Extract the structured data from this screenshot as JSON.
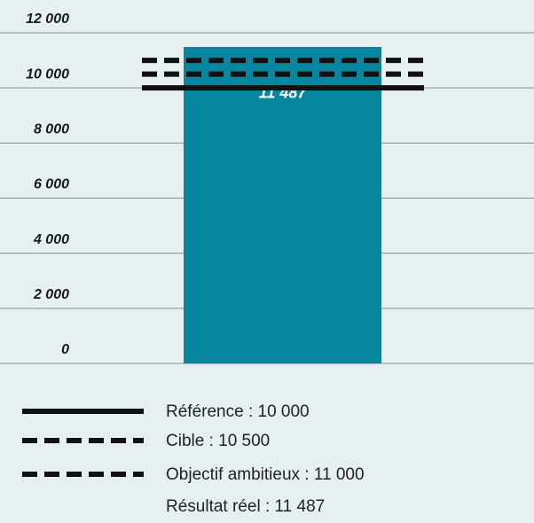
{
  "chart_data": {
    "type": "bar",
    "categories": [
      null
    ],
    "series": [
      {
        "name": "Résultat réel : 11 487",
        "color": "#06869f",
        "values": [
          11487
        ],
        "value_labels": [
          "11 487"
        ]
      }
    ],
    "reference_lines": [
      {
        "name": "Référence : 10 000",
        "value": 10000,
        "style": "solid",
        "color": "#111111"
      },
      {
        "name": "Cible : 10 500",
        "value": 10500,
        "style": "dashed",
        "color": "#111111"
      },
      {
        "name": "Objectif ambitieux : 11 000",
        "value": 11000,
        "style": "dashed",
        "color": "#111111"
      }
    ],
    "ylim": [
      0,
      12000
    ],
    "yticks": [
      {
        "value": 0,
        "label": "0"
      },
      {
        "value": 2000,
        "label": "2 000"
      },
      {
        "value": 4000,
        "label": "4 000"
      },
      {
        "value": 6000,
        "label": "6 000"
      },
      {
        "value": 8000,
        "label": "8 000"
      },
      {
        "value": 10000,
        "label": "10 000"
      },
      {
        "value": 12000,
        "label": "12 000"
      }
    ],
    "grid": true
  }
}
